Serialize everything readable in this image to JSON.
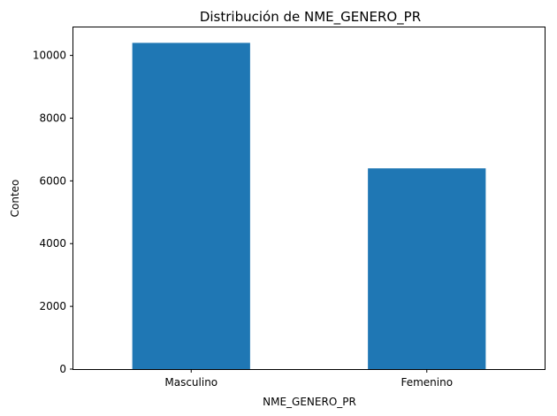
{
  "chart_data": {
    "type": "bar",
    "title": "Distribución de NME_GENERO_PR",
    "xlabel": "NME_GENERO_PR",
    "ylabel": "Conteo",
    "categories": [
      "Masculino",
      "Femenino"
    ],
    "values": [
      10400,
      6400
    ],
    "ylim": [
      0,
      10920
    ],
    "yticks": [
      0,
      2000,
      4000,
      6000,
      8000,
      10000
    ],
    "grid": false,
    "legend": "none",
    "bar_color": "#1f77b4"
  }
}
